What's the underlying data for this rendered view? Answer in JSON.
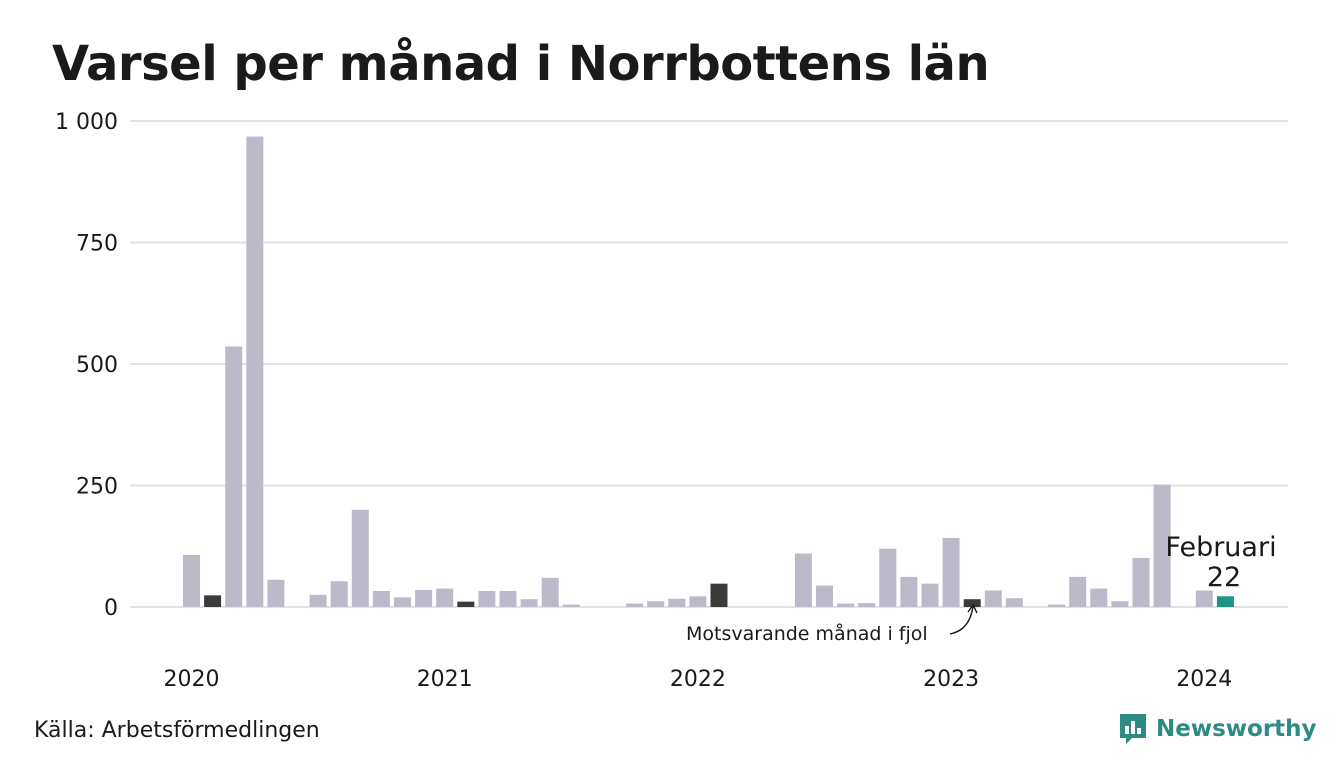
{
  "title": "Varsel per månad i Norrbottens län",
  "source": "Källa: Arbetsförmedlingen",
  "brand": {
    "name": "Newsworthy",
    "color": "#2e8b84"
  },
  "colors": {
    "bar": "#bcbac9",
    "same_month_last_year": "#3b3b3b",
    "current": "#1e9488",
    "grid": "#e2e2e2"
  },
  "annotation_same_month": "Motsvarande månad i fjol",
  "highlight": {
    "label": "Februari",
    "value": "22"
  },
  "chart_data": {
    "type": "bar",
    "title": "Varsel per månad i Norrbottens län",
    "xlabel": "",
    "ylabel": "",
    "ylim": [
      0,
      1000
    ],
    "yticks": [
      0,
      250,
      500,
      750,
      1000
    ],
    "ytick_labels": [
      "0",
      "250",
      "500",
      "750",
      "1 000"
    ],
    "year_labels": [
      "2020",
      "2021",
      "2022",
      "2023",
      "2024"
    ],
    "year_label_months": [
      "2020-01",
      "2021-01",
      "2022-01",
      "2023-01",
      "2024-01"
    ],
    "grid": true,
    "categories": [
      "2020-01",
      "2020-02",
      "2020-03",
      "2020-04",
      "2020-05",
      "2020-06",
      "2020-07",
      "2020-08",
      "2020-09",
      "2020-10",
      "2020-11",
      "2020-12",
      "2021-01",
      "2021-02",
      "2021-03",
      "2021-04",
      "2021-05",
      "2021-06",
      "2021-07",
      "2021-08",
      "2021-09",
      "2021-10",
      "2021-11",
      "2021-12",
      "2022-01",
      "2022-02",
      "2022-03",
      "2022-04",
      "2022-05",
      "2022-06",
      "2022-07",
      "2022-08",
      "2022-09",
      "2022-10",
      "2022-11",
      "2022-12",
      "2023-01",
      "2023-02",
      "2023-03",
      "2023-04",
      "2023-05",
      "2023-06",
      "2023-07",
      "2023-08",
      "2023-09",
      "2023-10",
      "2023-11",
      "2023-12",
      "2024-01",
      "2024-02"
    ],
    "values": [
      107,
      24,
      536,
      968,
      56,
      0,
      25,
      53,
      200,
      33,
      20,
      35,
      38,
      11,
      33,
      33,
      16,
      60,
      5,
      0,
      0,
      7,
      12,
      17,
      22,
      48,
      0,
      0,
      0,
      110,
      44,
      7,
      8,
      120,
      62,
      48,
      142,
      16,
      34,
      18,
      0,
      5,
      62,
      38,
      12,
      101,
      252,
      0,
      34,
      22
    ],
    "same_month_last_year": [
      "2020-02",
      "2021-02",
      "2022-02",
      "2023-02"
    ],
    "current": "2024-02"
  }
}
